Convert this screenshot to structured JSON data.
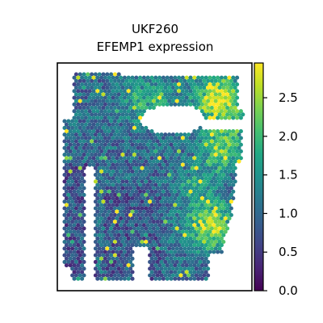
{
  "chart_data": {
    "type": "scatter",
    "subtype": "spatial-hexbin",
    "title": "UKF260",
    "subtitle": "EFEMP1 expression",
    "xlabel": "",
    "ylabel": "",
    "show_axis_ticks": false,
    "grid": false,
    "legend": "none",
    "colormap": "viridis",
    "colorbar": {
      "min": 0.0,
      "max": 2.95,
      "ticks": [
        0.0,
        0.5,
        1.0,
        1.5,
        2.0,
        2.5
      ],
      "tick_labels": [
        "0.0",
        "0.5",
        "1.0",
        "1.5",
        "2.0",
        "2.5"
      ],
      "placement": "right"
    },
    "colors": {
      "viridis_low": "#440154",
      "viridis_mid": "#21918c",
      "viridis_high": "#fde725"
    }
  }
}
